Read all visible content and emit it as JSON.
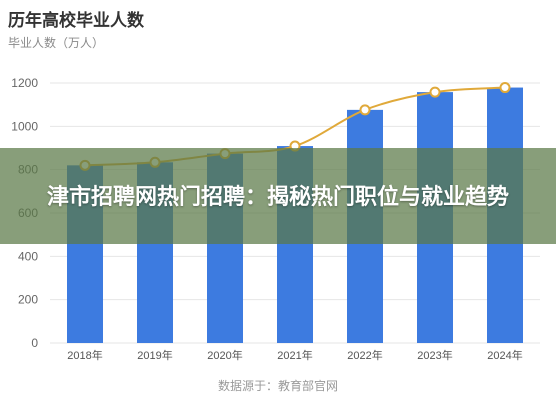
{
  "chart_data": {
    "type": "bar",
    "title": "历年高校毕业人数",
    "subtitle": "毕业人数（万人）",
    "categories": [
      "2018年",
      "2019年",
      "2020年",
      "2021年",
      "2022年",
      "2023年",
      "2024年"
    ],
    "series": [
      {
        "values": [
          820,
          834,
          874,
          909,
          1076,
          1158,
          1179
        ],
        "kind": "bar",
        "color": "#3d7be0"
      },
      {
        "values": [
          820,
          834,
          874,
          909,
          1076,
          1158,
          1179
        ],
        "kind": "line",
        "color": "#e0a93a"
      }
    ],
    "yticks": [
      "0",
      "200",
      "400",
      "600",
      "800",
      "1000",
      "1200"
    ],
    "ylim": [
      0,
      1200
    ],
    "grid": true,
    "source": "数据源于：教育部官网"
  },
  "overlay": {
    "headline": "津市招聘网热门招聘：揭秘热门职位与就业趋势"
  },
  "colors": {
    "bar": "#3d7be0",
    "line": "#e0a93a",
    "banner": "#5a7846"
  }
}
